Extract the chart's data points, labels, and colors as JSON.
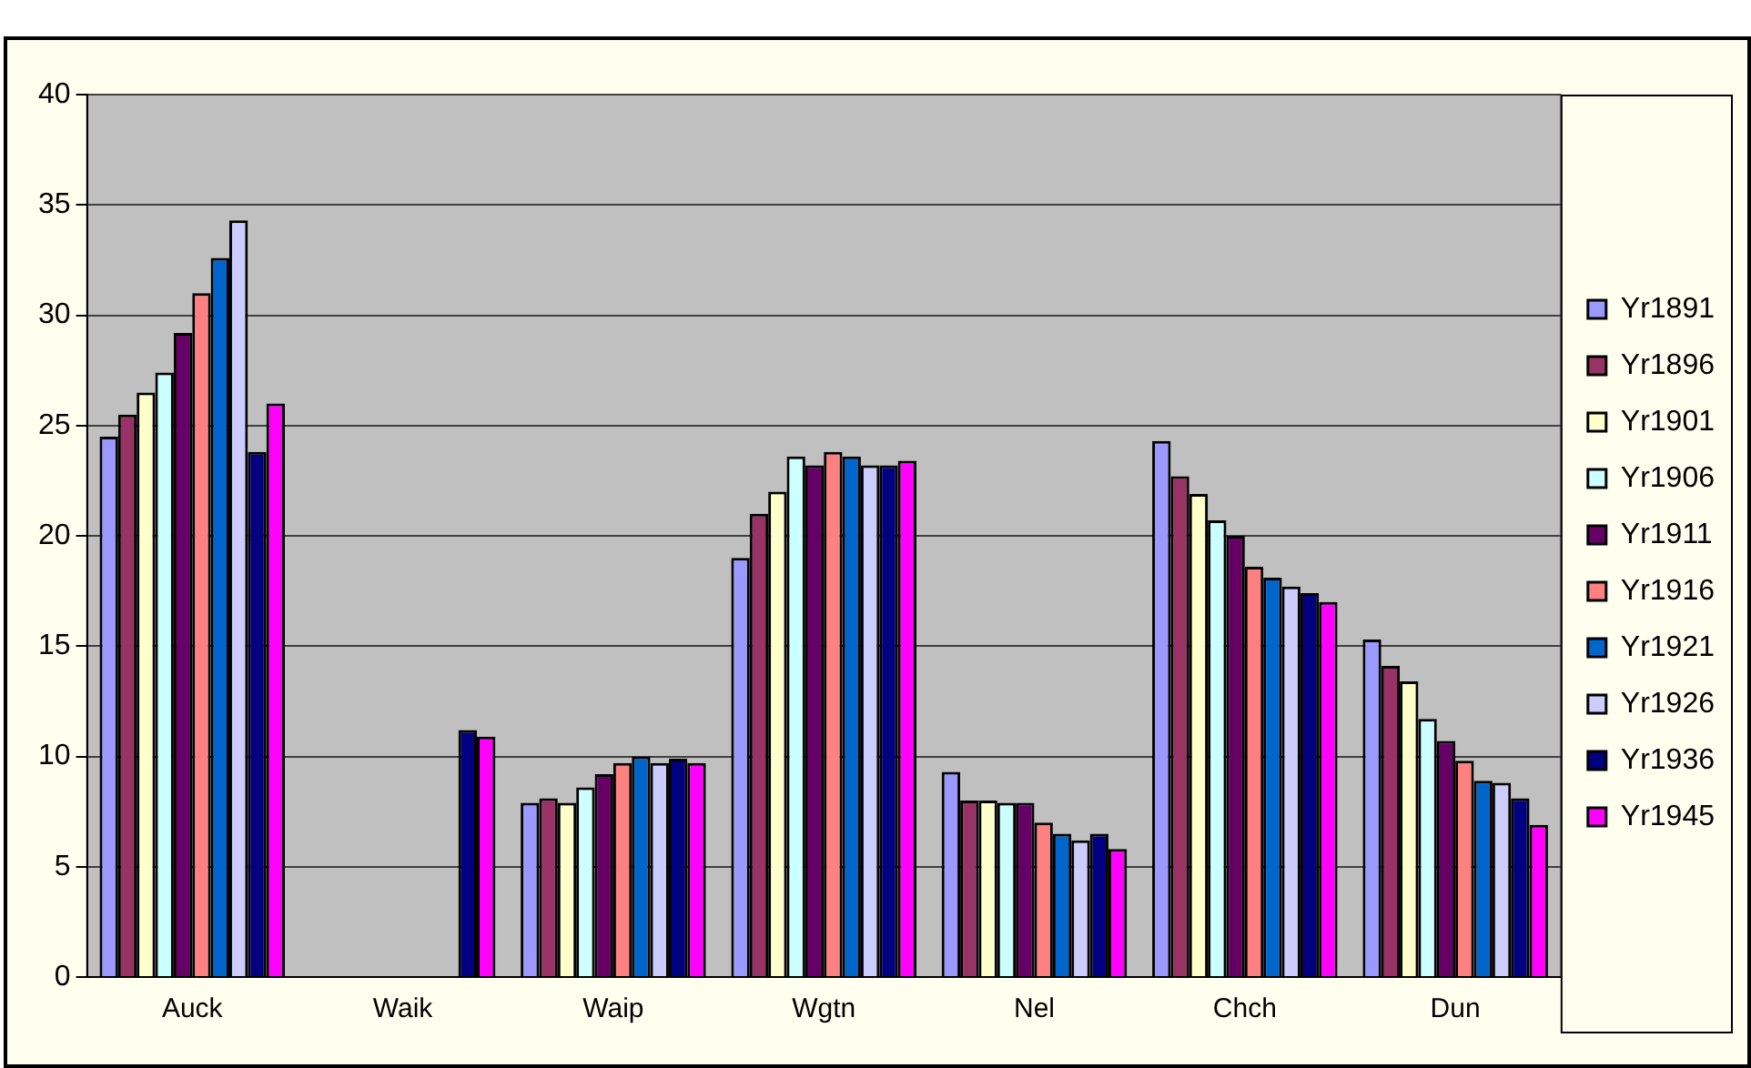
{
  "chart_data": {
    "type": "bar",
    "categories": [
      "Auck",
      "Waik",
      "Waip",
      "Wgtn",
      "Nel",
      "Chch",
      "Dun"
    ],
    "series": [
      {
        "name": "Yr1891",
        "color": "#9999ff",
        "values": [
          24.5,
          null,
          7.9,
          19.0,
          9.3,
          24.3,
          15.3
        ]
      },
      {
        "name": "Yr1896",
        "color": "#993366",
        "values": [
          25.5,
          null,
          8.1,
          21.0,
          8.0,
          22.7,
          14.1
        ]
      },
      {
        "name": "Yr1901",
        "color": "#ffffcc",
        "values": [
          26.5,
          null,
          7.9,
          22.0,
          8.0,
          21.9,
          13.4
        ]
      },
      {
        "name": "Yr1906",
        "color": "#ccffff",
        "values": [
          27.4,
          null,
          8.6,
          23.6,
          7.9,
          20.7,
          11.7
        ]
      },
      {
        "name": "Yr1911",
        "color": "#660066",
        "values": [
          29.2,
          null,
          9.2,
          23.2,
          7.9,
          20.0,
          10.7
        ]
      },
      {
        "name": "Yr1916",
        "color": "#ff8080",
        "values": [
          31.0,
          null,
          9.7,
          23.8,
          7.0,
          18.6,
          9.8
        ]
      },
      {
        "name": "Yr1921",
        "color": "#0066cc",
        "values": [
          32.6,
          null,
          10.0,
          23.6,
          6.5,
          18.1,
          8.9
        ]
      },
      {
        "name": "Yr1926",
        "color": "#ccccff",
        "values": [
          34.3,
          null,
          9.7,
          23.2,
          6.2,
          17.7,
          8.8
        ]
      },
      {
        "name": "Yr1936",
        "color": "#000080",
        "values": [
          23.8,
          11.2,
          9.9,
          23.2,
          6.5,
          17.4,
          8.1
        ]
      },
      {
        "name": "Yr1945",
        "color": "#ff00ff",
        "values": [
          26.0,
          10.9,
          9.7,
          23.4,
          5.8,
          17.0,
          6.9
        ]
      }
    ],
    "ylim": [
      0,
      40
    ],
    "yticks": [
      0,
      5,
      10,
      15,
      20,
      25,
      30,
      35,
      40
    ],
    "grid": "y",
    "legend": "right"
  }
}
